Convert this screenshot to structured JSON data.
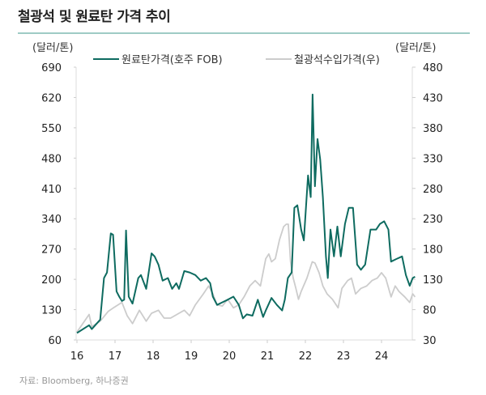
{
  "chart_data": {
    "type": "line",
    "title": "철광석 및 원료탄 가격 추이",
    "y_unit_left": "(달러/톤)",
    "y_unit_right": "(달러/톤)",
    "x_ticks": [
      "16",
      "17",
      "18",
      "19",
      "20",
      "21",
      "22",
      "23",
      "24"
    ],
    "xlim": [
      16,
      24.88
    ],
    "ylim_left": [
      60,
      690
    ],
    "y_ticks_left": [
      "690",
      "620",
      "550",
      "480",
      "410",
      "340",
      "270",
      "200",
      "130",
      "60"
    ],
    "ylim_right": [
      30,
      480
    ],
    "y_ticks_right": [
      "480",
      "430",
      "380",
      "330",
      "280",
      "230",
      "180",
      "130",
      "80",
      "30"
    ],
    "grid": false,
    "legend_position": "top",
    "colors": {
      "coking_coal": "#0e6b60",
      "iron_ore": "#cccccc"
    },
    "series": [
      {
        "name": "원료탄가격(호주 FOB)",
        "axis": "left",
        "points": [
          [
            16.0,
            76
          ],
          [
            16.32,
            94
          ],
          [
            16.39,
            85
          ],
          [
            16.61,
            107
          ],
          [
            16.71,
            203
          ],
          [
            16.79,
            216
          ],
          [
            16.89,
            306
          ],
          [
            16.95,
            303
          ],
          [
            17.04,
            172
          ],
          [
            17.11,
            160
          ],
          [
            17.18,
            150
          ],
          [
            17.24,
            153
          ],
          [
            17.29,
            313
          ],
          [
            17.36,
            160
          ],
          [
            17.46,
            144
          ],
          [
            17.61,
            203
          ],
          [
            17.68,
            210
          ],
          [
            17.82,
            178
          ],
          [
            17.96,
            260
          ],
          [
            18.04,
            253
          ],
          [
            18.14,
            234
          ],
          [
            18.25,
            197
          ],
          [
            18.39,
            203
          ],
          [
            18.5,
            178
          ],
          [
            18.61,
            191
          ],
          [
            18.68,
            178
          ],
          [
            18.82,
            219
          ],
          [
            18.96,
            216
          ],
          [
            19.11,
            210
          ],
          [
            19.25,
            197
          ],
          [
            19.39,
            203
          ],
          [
            19.5,
            191
          ],
          [
            19.57,
            160
          ],
          [
            19.68,
            141
          ],
          [
            19.82,
            147
          ],
          [
            19.96,
            153
          ],
          [
            20.11,
            160
          ],
          [
            20.25,
            141
          ],
          [
            20.36,
            110
          ],
          [
            20.46,
            119
          ],
          [
            20.61,
            116
          ],
          [
            20.75,
            153
          ],
          [
            20.89,
            113
          ],
          [
            20.96,
            128
          ],
          [
            21.11,
            157
          ],
          [
            21.25,
            141
          ],
          [
            21.39,
            128
          ],
          [
            21.46,
            153
          ],
          [
            21.54,
            203
          ],
          [
            21.64,
            216
          ],
          [
            21.71,
            365
          ],
          [
            21.79,
            371
          ],
          [
            21.89,
            315
          ],
          [
            21.96,
            290
          ],
          [
            22.07,
            440
          ],
          [
            22.14,
            390
          ],
          [
            22.19,
            627
          ],
          [
            22.25,
            415
          ],
          [
            22.32,
            524
          ],
          [
            22.39,
            477
          ],
          [
            22.46,
            390
          ],
          [
            22.54,
            253
          ],
          [
            22.59,
            203
          ],
          [
            22.66,
            315
          ],
          [
            22.75,
            253
          ],
          [
            22.84,
            322
          ],
          [
            22.93,
            253
          ],
          [
            23.04,
            328
          ],
          [
            23.14,
            365
          ],
          [
            23.25,
            365
          ],
          [
            23.36,
            234
          ],
          [
            23.46,
            222
          ],
          [
            23.57,
            234
          ],
          [
            23.71,
            315
          ],
          [
            23.86,
            315
          ],
          [
            23.96,
            328
          ],
          [
            24.07,
            334
          ],
          [
            24.18,
            315
          ],
          [
            24.25,
            241
          ],
          [
            24.39,
            247
          ],
          [
            24.54,
            253
          ],
          [
            24.64,
            210
          ],
          [
            24.74,
            185
          ],
          [
            24.82,
            203
          ],
          [
            24.88,
            206
          ]
        ]
      },
      {
        "name": "철광석수입가격(우)",
        "axis": "right",
        "points": [
          [
            16.0,
            43
          ],
          [
            16.32,
            72
          ],
          [
            16.39,
            52
          ],
          [
            16.61,
            61
          ],
          [
            16.82,
            77
          ],
          [
            16.96,
            83
          ],
          [
            17.18,
            92
          ],
          [
            17.32,
            70
          ],
          [
            17.46,
            57
          ],
          [
            17.64,
            79
          ],
          [
            17.82,
            61
          ],
          [
            17.96,
            74
          ],
          [
            18.14,
            79
          ],
          [
            18.29,
            66
          ],
          [
            18.46,
            66
          ],
          [
            18.68,
            74
          ],
          [
            18.82,
            79
          ],
          [
            18.96,
            70
          ],
          [
            19.11,
            88
          ],
          [
            19.32,
            106
          ],
          [
            19.46,
            119
          ],
          [
            19.57,
            106
          ],
          [
            19.68,
            88
          ],
          [
            19.82,
            86
          ],
          [
            19.96,
            97
          ],
          [
            20.11,
            83
          ],
          [
            20.25,
            88
          ],
          [
            20.39,
            101
          ],
          [
            20.54,
            119
          ],
          [
            20.68,
            128
          ],
          [
            20.82,
            119
          ],
          [
            20.96,
            164
          ],
          [
            21.04,
            172
          ],
          [
            21.11,
            159
          ],
          [
            21.21,
            164
          ],
          [
            21.32,
            195
          ],
          [
            21.43,
            217
          ],
          [
            21.5,
            221
          ],
          [
            21.55,
            221
          ],
          [
            21.61,
            159
          ],
          [
            21.68,
            132
          ],
          [
            21.75,
            115
          ],
          [
            21.82,
            97
          ],
          [
            21.89,
            110
          ],
          [
            22.04,
            132
          ],
          [
            22.18,
            159
          ],
          [
            22.25,
            157
          ],
          [
            22.36,
            141
          ],
          [
            22.46,
            119
          ],
          [
            22.57,
            106
          ],
          [
            22.71,
            97
          ],
          [
            22.86,
            83
          ],
          [
            22.96,
            115
          ],
          [
            23.11,
            128
          ],
          [
            23.21,
            132
          ],
          [
            23.32,
            106
          ],
          [
            23.46,
            115
          ],
          [
            23.61,
            119
          ],
          [
            23.75,
            128
          ],
          [
            23.89,
            132
          ],
          [
            24.0,
            141
          ],
          [
            24.11,
            132
          ],
          [
            24.25,
            101
          ],
          [
            24.36,
            119
          ],
          [
            24.46,
            110
          ],
          [
            24.61,
            101
          ],
          [
            24.74,
            92
          ],
          [
            24.82,
            106
          ],
          [
            24.88,
            101
          ]
        ]
      }
    ],
    "source": "자료: Bloomberg, 하나증권"
  }
}
